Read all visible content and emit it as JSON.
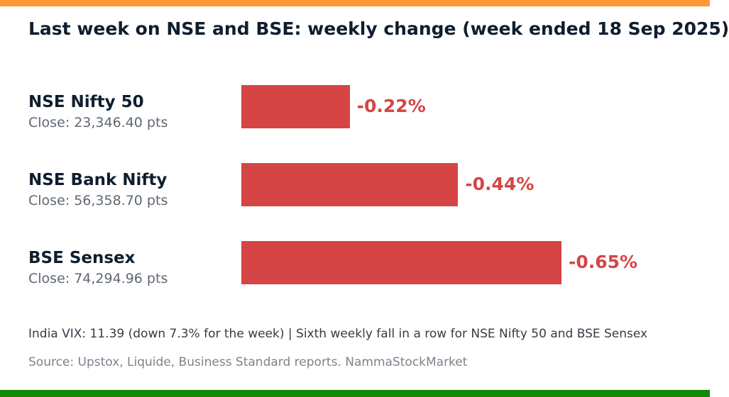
{
  "title": "Last week on NSE and BSE: weekly change (week ended 18 Sep 2025)",
  "colors": {
    "top_stripe": "#FF9933",
    "bottom_stripe": "#138808",
    "bar": "#D64545",
    "value_text": "#D64545"
  },
  "chart_data": {
    "type": "bar",
    "orientation": "horizontal",
    "title": "Last week on NSE and BSE: weekly change (week ended 18 Sep 2025)",
    "unit": "%",
    "categories": [
      "NSE Nifty 50",
      "NSE Bank Nifty",
      "BSE Sensex"
    ],
    "values": [
      -0.22,
      -0.44,
      -0.65
    ],
    "value_labels": [
      "-0.22%",
      "-0.44%",
      "-0.65%"
    ],
    "closes": [
      "Close: 23,346.40 pts",
      "Close: 56,358.70 pts",
      "Close: 74,294.96 pts"
    ],
    "grid": false,
    "legend": "none"
  },
  "footnote": "India VIX: 11.39 (down 7.3% for the week)  |  Sixth weekly fall in a row for NSE Nifty 50 and BSE Sensex",
  "source": "Source: Upstox, Liquide, Business Standard reports. NammaStockMarket"
}
